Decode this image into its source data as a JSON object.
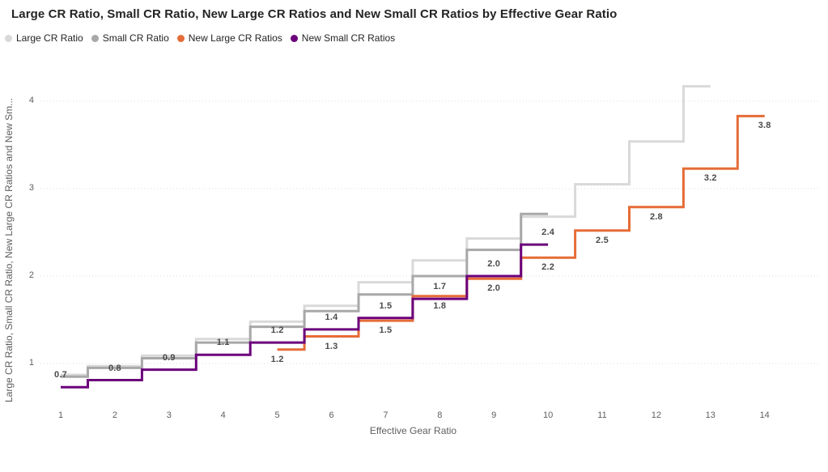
{
  "title": "Large CR Ratio, Small CR Ratio, New Large CR Ratios and New Small CR Ratios by Effective Gear Ratio",
  "axes": {
    "x": {
      "title": "Effective Gear Ratio",
      "tick_labels": [
        "1",
        "2",
        "3",
        "4",
        "5",
        "6",
        "7",
        "8",
        "9",
        "10",
        "11",
        "12",
        "13",
        "14"
      ]
    },
    "y": {
      "title": "Large CR Ratio, Small CR Ratio, New Large CR Ratios and New Sm...",
      "tick_labels": [
        "1",
        "2",
        "3",
        "4"
      ]
    }
  },
  "colors": {
    "large_cr": "#D9D9D9",
    "small_cr": "#A8A8A8",
    "new_large_cr": "#E66C37",
    "new_small_cr": "#6B007B",
    "title_text": "#252423",
    "axis_text": "#605E5C",
    "gridline": "#DCDCDC",
    "data_label_text": "#4A4A4A"
  },
  "chart_data": {
    "type": "line",
    "line_style": "step-center",
    "title": "Large CR Ratio, Small CR Ratio, New Large CR Ratios and New Small CR Ratios by Effective Gear Ratio",
    "xlabel": "Effective Gear Ratio",
    "ylabel": "Large CR Ratio, Small CR Ratio, New Large CR Ratios and New Sm...",
    "x_ticks": [
      1,
      2,
      3,
      4,
      5,
      6,
      7,
      8,
      9,
      10,
      11,
      12,
      13,
      14
    ],
    "y_ticks": [
      1,
      2,
      3,
      4
    ],
    "ylim": [
      0.55,
      4.55
    ],
    "grid": "horizontal-dotted",
    "legend_position": "top-left",
    "series": [
      {
        "name": "Large CR Ratio",
        "color": "#D9D9D9",
        "x": [
          1,
          2,
          3,
          4,
          5,
          6,
          7,
          8,
          9,
          10,
          11,
          12,
          13
        ],
        "values": [
          0.87,
          0.97,
          1.09,
          1.28,
          1.48,
          1.66,
          1.93,
          2.18,
          2.43,
          2.68,
          3.05,
          3.54,
          4.17
        ],
        "labels": null,
        "label_position": "none"
      },
      {
        "name": "Small CR Ratio",
        "color": "#A8A8A8",
        "x": [
          1,
          2,
          3,
          4,
          5,
          6,
          7,
          8,
          9,
          10
        ],
        "values": [
          0.85,
          0.95,
          1.06,
          1.24,
          1.42,
          1.6,
          1.79,
          2.0,
          2.3,
          2.71
        ],
        "labels": null,
        "label_position": "none"
      },
      {
        "name": "New Large CR Ratios",
        "color": "#E66C37",
        "x": [
          5,
          6,
          7,
          8,
          9,
          10,
          11,
          12,
          13,
          14
        ],
        "values": [
          1.16,
          1.31,
          1.49,
          1.77,
          1.97,
          2.21,
          2.52,
          2.79,
          3.23,
          3.83
        ],
        "labels": [
          "1.2",
          "1.3",
          "1.5",
          "1.8",
          "2.0",
          "2.2",
          "2.5",
          "2.8",
          "3.2",
          "3.8"
        ],
        "label_position": "below"
      },
      {
        "name": "New Small CR Ratios",
        "color": "#6B007B",
        "x": [
          1,
          2,
          3,
          4,
          5,
          6,
          7,
          8,
          9,
          10
        ],
        "values": [
          0.73,
          0.81,
          0.93,
          1.1,
          1.24,
          1.39,
          1.52,
          1.74,
          2.0,
          2.36
        ],
        "labels": [
          "0.7",
          "0.8",
          "0.9",
          "1.1",
          "1.2",
          "1.4",
          "1.5",
          "1.7",
          "2.0",
          "2.4"
        ],
        "label_position": "above"
      }
    ]
  }
}
